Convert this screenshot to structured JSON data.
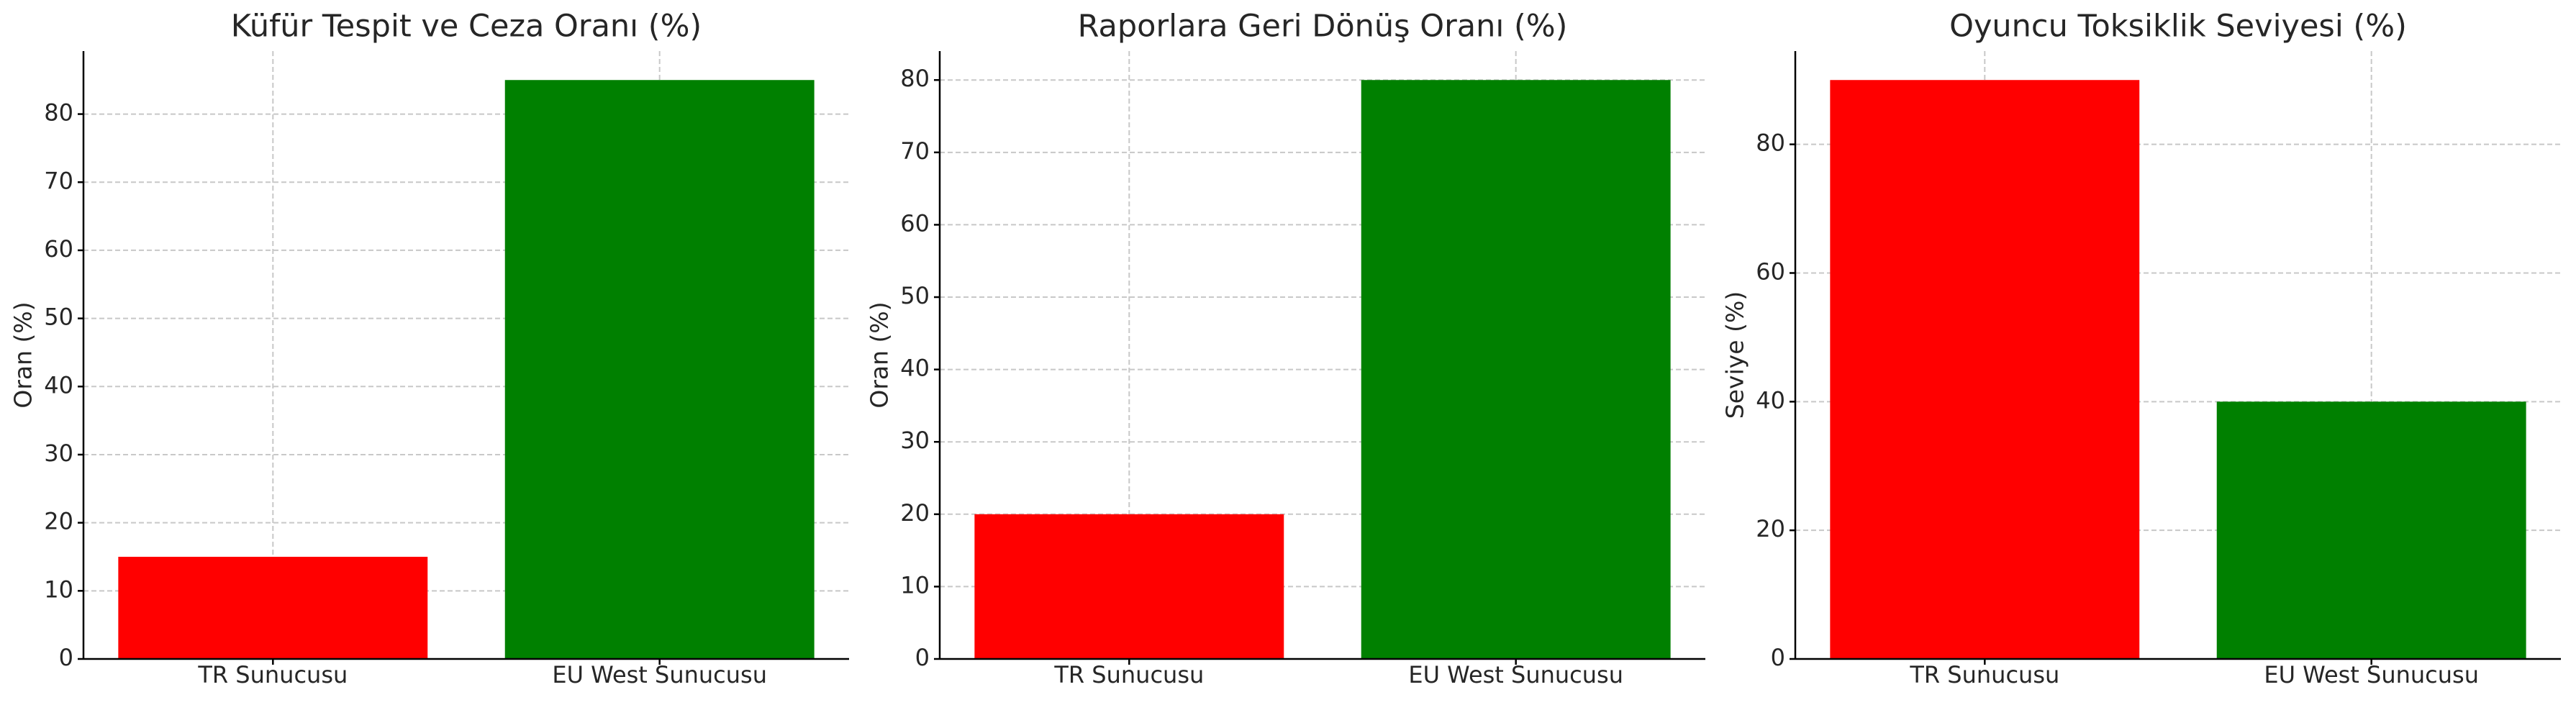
{
  "chart_data": [
    {
      "type": "bar",
      "title": "Küfür Tespit ve Ceza Oranı (%)",
      "ylabel": "Oran (%)",
      "categories": [
        "TR Sunucusu",
        "EU West Sunucusu"
      ],
      "values": [
        15,
        85
      ],
      "colors": [
        "#ff0000",
        "#008000"
      ],
      "ylim": [
        0,
        89.25
      ],
      "yticks": [
        0,
        10,
        20,
        30,
        40,
        50,
        60,
        70,
        80
      ],
      "grid": true
    },
    {
      "type": "bar",
      "title": "Raporlara Geri Dönüş Oranı (%)",
      "ylabel": "Oran (%)",
      "categories": [
        "TR Sunucusu",
        "EU West Sunucusu"
      ],
      "values": [
        20,
        80
      ],
      "colors": [
        "#ff0000",
        "#008000"
      ],
      "ylim": [
        0,
        84
      ],
      "yticks": [
        0,
        10,
        20,
        30,
        40,
        50,
        60,
        70,
        80
      ],
      "grid": true
    },
    {
      "type": "bar",
      "title": "Oyuncu Toksiklik Seviyesi (%)",
      "ylabel": "Seviye (%)",
      "categories": [
        "TR Sunucusu",
        "EU West Sunucusu"
      ],
      "values": [
        90,
        40
      ],
      "colors": [
        "#ff0000",
        "#008000"
      ],
      "ylim": [
        0,
        94.5
      ],
      "yticks": [
        0,
        20,
        40,
        60,
        80
      ],
      "grid": true
    }
  ]
}
